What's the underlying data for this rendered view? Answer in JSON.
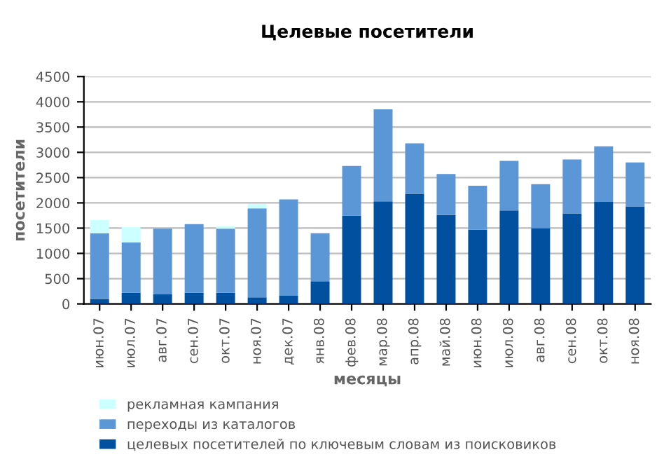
{
  "chart_data": {
    "type": "bar",
    "title": "Целевые посетители",
    "xlabel": "месяцы",
    "ylabel": "посетители",
    "categories": [
      "июн.07",
      "июл.07",
      "авг.07",
      "сен.07",
      "окт.07",
      "ноя.07",
      "дек.07",
      "янв.08",
      "фев.08",
      "мар.08",
      "апр.08",
      "май.08",
      "июн.08",
      "июл.08",
      "авг.08",
      "сен.08",
      "окт.08",
      "ноя.08"
    ],
    "stacked": true,
    "grid": "y",
    "legend": "bottom",
    "ylim": [
      0,
      4500
    ],
    "yticks": [
      0,
      500,
      1000,
      1500,
      2000,
      2500,
      3000,
      3500,
      4000,
      4500
    ],
    "series": [
      {
        "name": "целевых посетителей по ключевым словам из поисковиков",
        "color": "#0050a0",
        "values": [
          100,
          220,
          190,
          220,
          220,
          130,
          160,
          450,
          1750,
          2030,
          2180,
          1760,
          1470,
          1850,
          1500,
          1790,
          2020,
          1930
        ]
      },
      {
        "name": "переходы из каталогов",
        "color": "#5b96d6",
        "values": [
          1300,
          1000,
          1300,
          1360,
          1270,
          1760,
          1910,
          950,
          980,
          1820,
          1000,
          810,
          870,
          980,
          870,
          1070,
          1100,
          870
        ]
      },
      {
        "name": "рекламная кампания",
        "color": "#ccffff",
        "values": [
          260,
          300,
          null,
          null,
          50,
          90,
          0,
          0,
          0,
          0,
          0,
          0,
          0,
          0,
          0,
          0,
          0,
          0
        ]
      }
    ]
  }
}
